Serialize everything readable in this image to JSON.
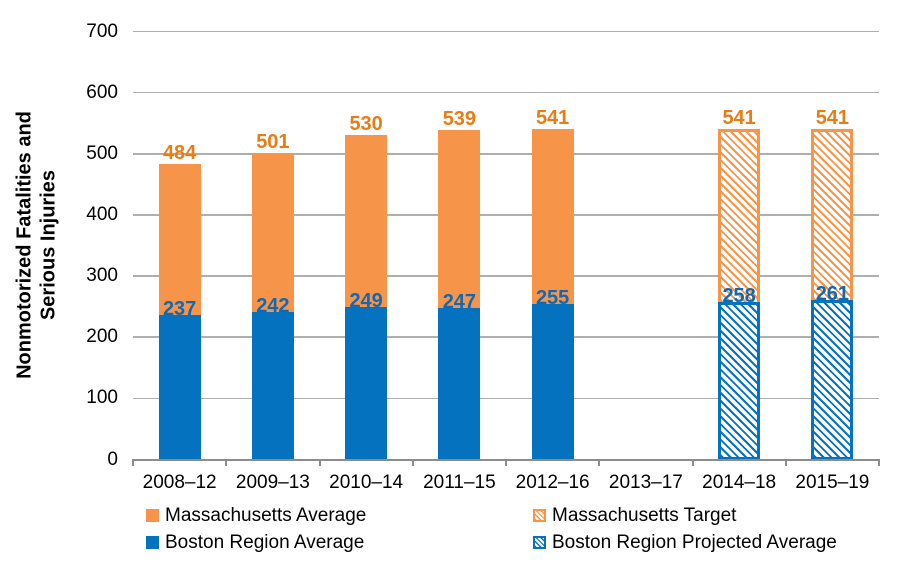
{
  "chart_data": {
    "type": "bar",
    "stacked": true,
    "ylabel": "Nonmotorized Fatalities and Serious Injuries",
    "ylabel_lines": [
      "Nonmotorized Fatalities and",
      "Serious Injuries"
    ],
    "xlabel": "",
    "ylim": [
      0,
      700
    ],
    "yticks": [
      0,
      100,
      200,
      300,
      400,
      500,
      600,
      700
    ],
    "grid": true,
    "legend_position": "bottom",
    "categories": [
      "2008–12",
      "2009–13",
      "2010–14",
      "2011–15",
      "2012–16",
      "2013–17",
      "2014–18",
      "2015–19"
    ],
    "bars": [
      {
        "category": "2008–12",
        "boston_region": 237,
        "massachusetts_total": 484,
        "projected": false
      },
      {
        "category": "2009–13",
        "boston_region": 242,
        "massachusetts_total": 501,
        "projected": false
      },
      {
        "category": "2010–14",
        "boston_region": 249,
        "massachusetts_total": 530,
        "projected": false
      },
      {
        "category": "2011–15",
        "boston_region": 247,
        "massachusetts_total": 539,
        "projected": false
      },
      {
        "category": "2012–16",
        "boston_region": 255,
        "massachusetts_total": 541,
        "projected": false
      },
      {
        "category": "2013–17",
        "boston_region": null,
        "massachusetts_total": null,
        "projected": null
      },
      {
        "category": "2014–18",
        "boston_region": 258,
        "massachusetts_total": 541,
        "projected": true
      },
      {
        "category": "2015–19",
        "boston_region": 261,
        "massachusetts_total": 541,
        "projected": true
      }
    ],
    "legend": [
      {
        "label": "Massachusetts Average",
        "color_key": "massachusetts",
        "pattern": "solid"
      },
      {
        "label": "Massachusetts Target",
        "color_key": "massachusetts",
        "pattern": "hatched"
      },
      {
        "label": "Boston Region Average",
        "color_key": "boston",
        "pattern": "solid"
      },
      {
        "label": "Boston Region Projected Average",
        "color_key": "boston",
        "pattern": "hatched"
      }
    ],
    "colors": {
      "massachusetts": "#F6954A",
      "boston": "#0572BF",
      "massachusetts_label": "#E87C15",
      "boston_label": "#1269B1",
      "gridline": "#AFAFAF",
      "axis": "#8C8C8C",
      "text": "#000000"
    }
  }
}
